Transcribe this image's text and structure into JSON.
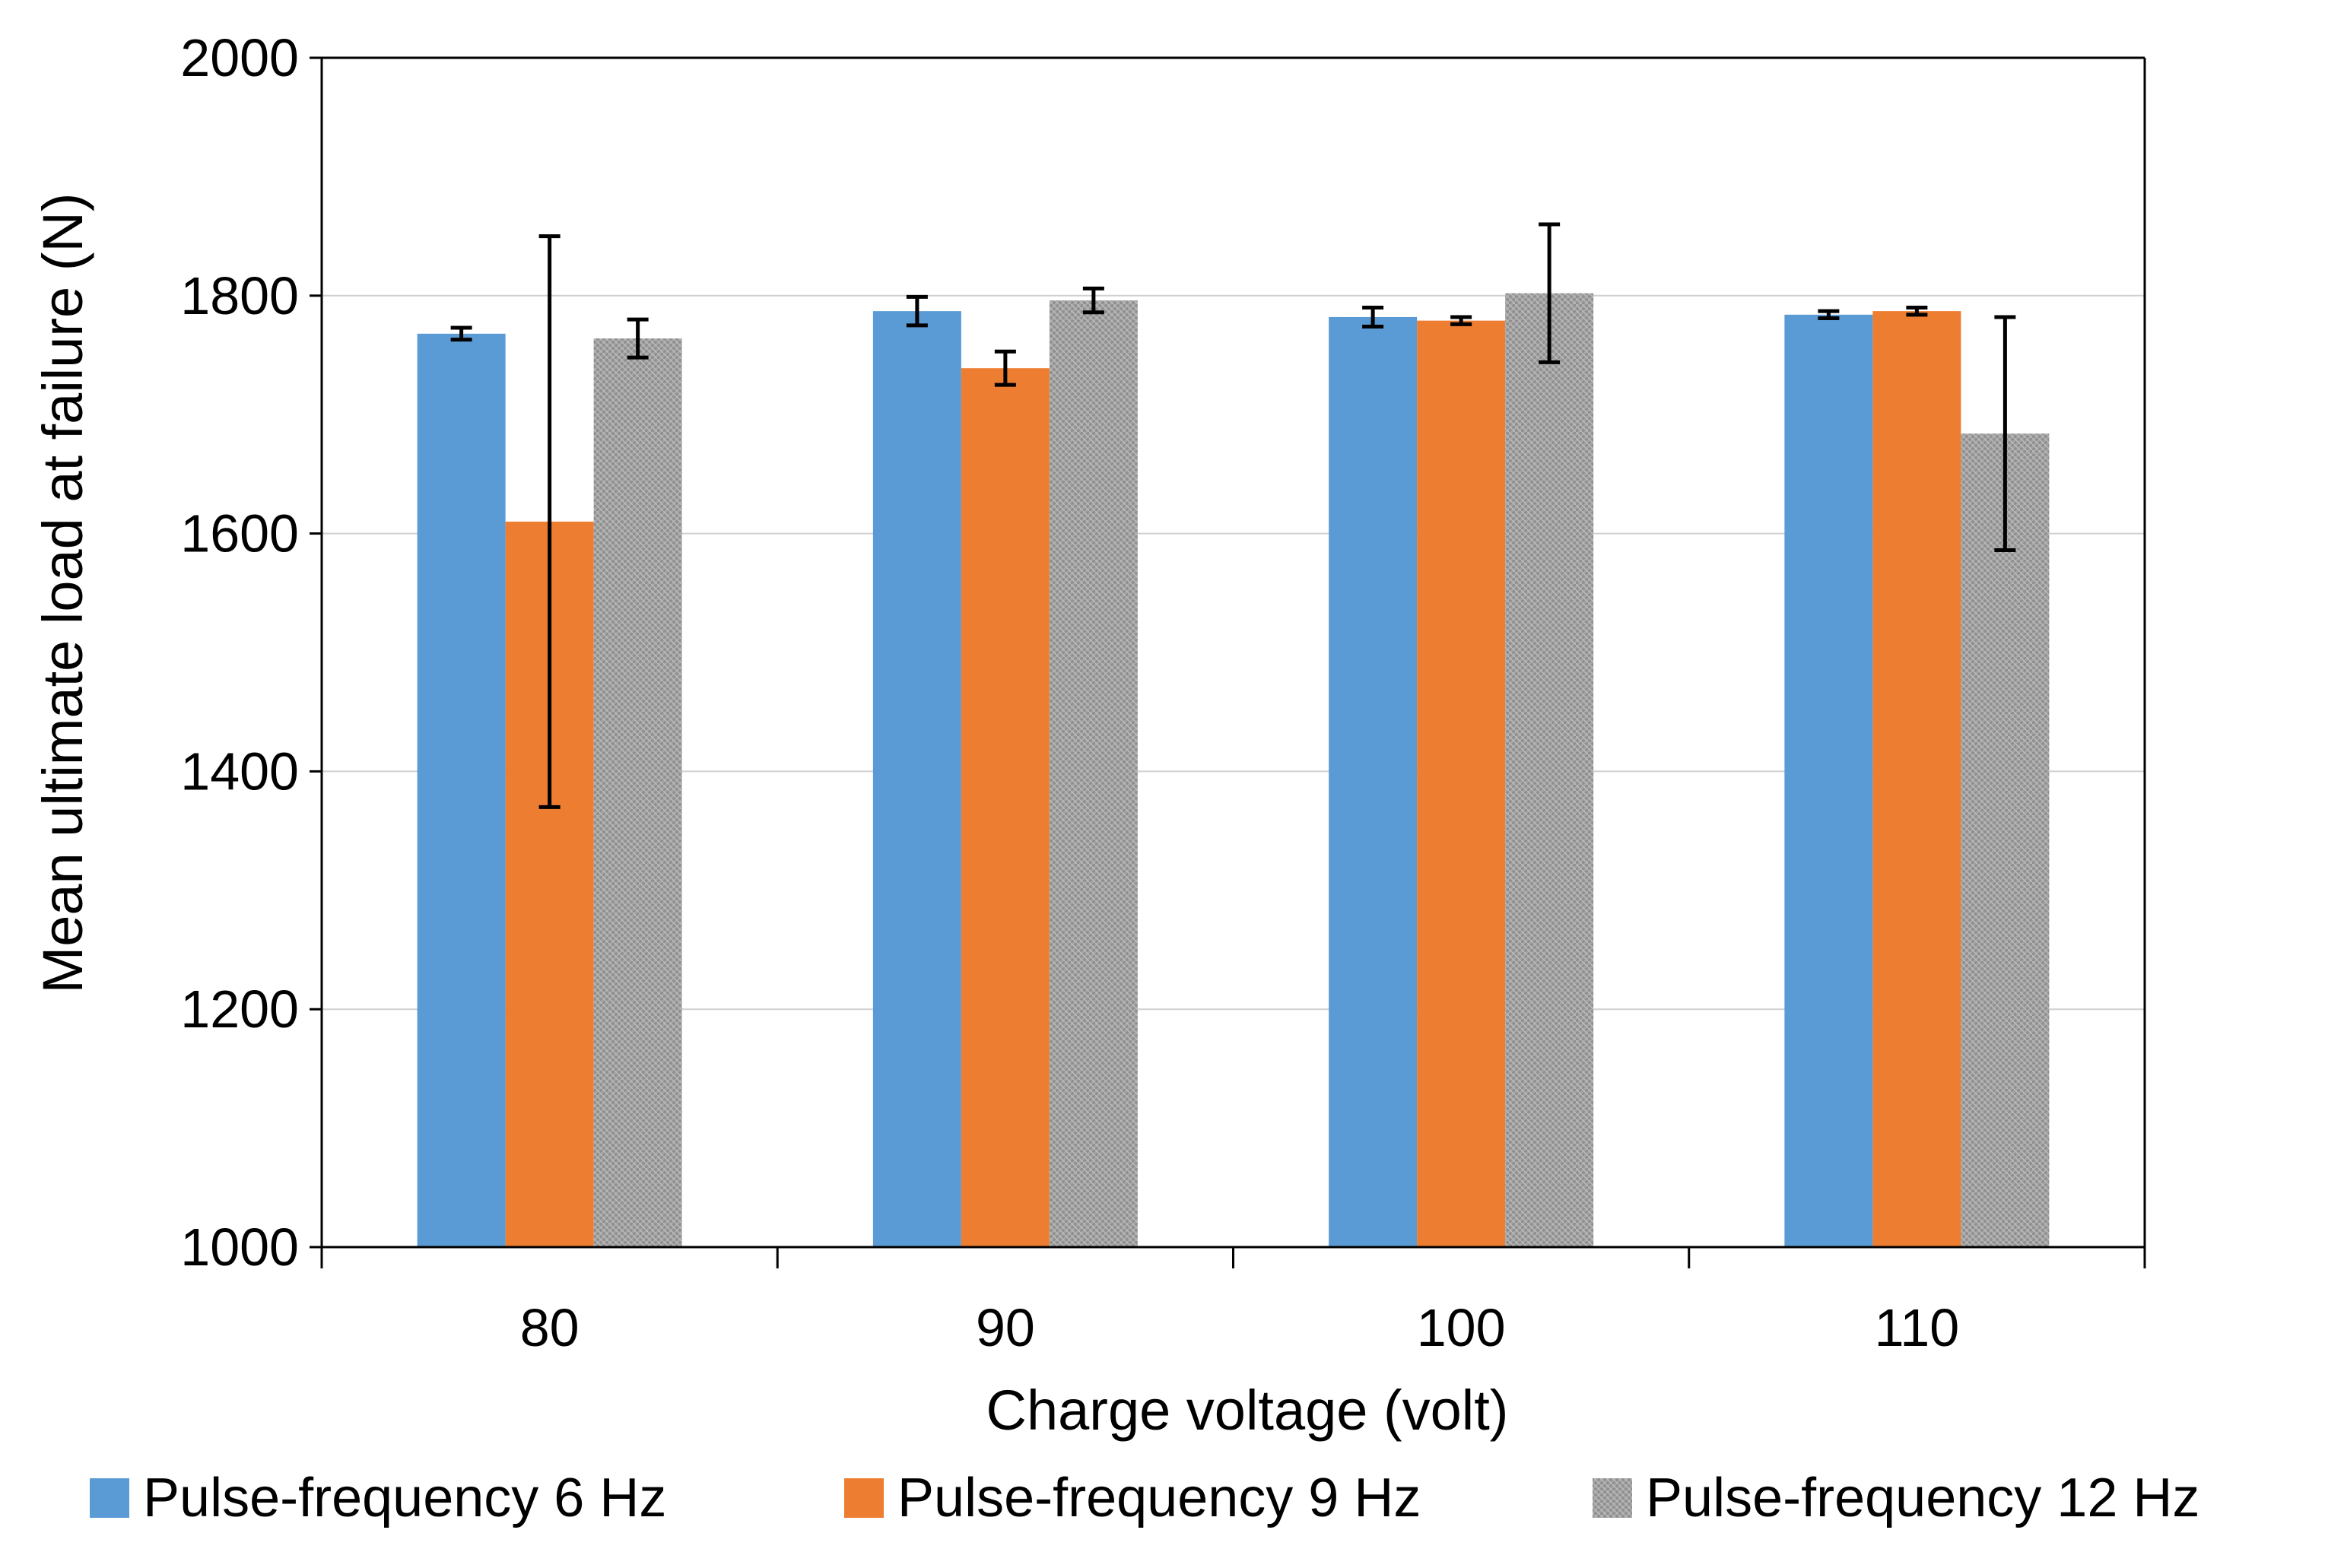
{
  "chart_data": {
    "type": "bar",
    "title": "",
    "xlabel": "Charge voltage (volt)",
    "ylabel": "Mean ultimate load at failure (N)",
    "ylim": [
      1000,
      2000
    ],
    "yticks": [
      "1000",
      "1200",
      "1400",
      "1600",
      "1800",
      "2000"
    ],
    "categories": [
      "80",
      "90",
      "100",
      "110"
    ],
    "grid": true,
    "legend_position": "bottom",
    "series": [
      {
        "name": "Pulse-frequency 6 Hz",
        "color": "#5b9bd5",
        "values": [
          1768,
          1787,
          1782,
          1784
        ],
        "errors": [
          5,
          12,
          8,
          3
        ]
      },
      {
        "name": "Pulse-frequency 9 Hz",
        "color": "#ed7d31",
        "values": [
          1610,
          1739,
          1779,
          1787
        ],
        "errors": [
          240,
          14,
          3,
          3
        ]
      },
      {
        "name": "Pulse-frequency 12 Hz",
        "color": "#a5a5a5",
        "values": [
          1764,
          1796,
          1802,
          1684
        ],
        "errors": [
          16,
          10,
          58,
          98
        ]
      }
    ]
  }
}
